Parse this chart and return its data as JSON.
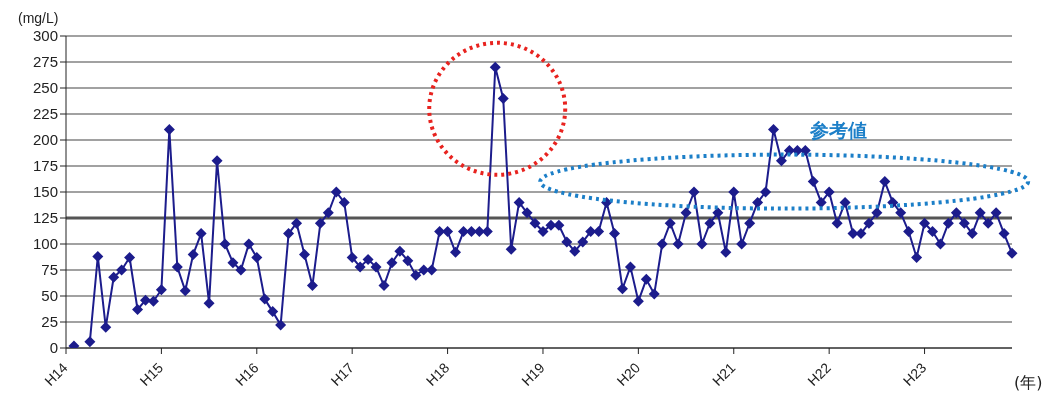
{
  "chart_data": {
    "type": "line",
    "ylabel": "(mg/L)",
    "xlabel": "(年)",
    "annotations": [
      "参考値"
    ],
    "categories": [
      "H14",
      null,
      null,
      null,
      null,
      null,
      null,
      null,
      null,
      null,
      null,
      null,
      "H15",
      null,
      null,
      null,
      null,
      null,
      null,
      null,
      null,
      null,
      null,
      null,
      "H16",
      null,
      null,
      null,
      null,
      null,
      null,
      null,
      null,
      null,
      null,
      null,
      "H17",
      null,
      null,
      null,
      null,
      null,
      null,
      null,
      null,
      null,
      null,
      null,
      "H18",
      null,
      null,
      null,
      null,
      null,
      null,
      null,
      null,
      null,
      null,
      null,
      "H19",
      null,
      null,
      null,
      null,
      null,
      null,
      null,
      null,
      null,
      null,
      null,
      "H20",
      null,
      null,
      null,
      null,
      null,
      null,
      null,
      null,
      null,
      null,
      null,
      "H21",
      null,
      null,
      null,
      null,
      null,
      null,
      null,
      null,
      null,
      null,
      null,
      "H22",
      null,
      null,
      null,
      null,
      null,
      null,
      null,
      null,
      null,
      null,
      null,
      "H23",
      null,
      null,
      null,
      null,
      null,
      null,
      null,
      null,
      null,
      null,
      null
    ],
    "series": [
      {
        "color": "#1c1c8c",
        "values": [
          null,
          2,
          null,
          6,
          88,
          20,
          68,
          75,
          87,
          37,
          46,
          45,
          56,
          210,
          78,
          55,
          90,
          110,
          43,
          180,
          100,
          82,
          75,
          100,
          87,
          47,
          35,
          22,
          110,
          120,
          90,
          60,
          120,
          130,
          150,
          140,
          87,
          78,
          85,
          78,
          60,
          82,
          93,
          84,
          70,
          75,
          75,
          112,
          112,
          92,
          112,
          112,
          112,
          112,
          270,
          240,
          95,
          140,
          130,
          120,
          112,
          118,
          118,
          102,
          93,
          102,
          112,
          112,
          140,
          110,
          57,
          78,
          45,
          66,
          52,
          100,
          120,
          100,
          130,
          150,
          100,
          120,
          130,
          92,
          150,
          100,
          120,
          140,
          150,
          210,
          180,
          190,
          190,
          190,
          160,
          140,
          150,
          120,
          140,
          110,
          110,
          120,
          130,
          160,
          140,
          130,
          112,
          87,
          120,
          112,
          100,
          120,
          130,
          120,
          110,
          130,
          120,
          130,
          110,
          91
        ]
      }
    ],
    "ylim": [
      0,
      300
    ],
    "yticks": [
      0,
      25,
      50,
      75,
      100,
      125,
      150,
      175,
      200,
      225,
      250,
      275,
      300
    ],
    "ref_lines": [
      {
        "axis": "y",
        "value": 125,
        "color": "#555555"
      }
    ],
    "grid": "y",
    "legend": false,
    "marker": "diamond",
    "line_style": "solid"
  }
}
